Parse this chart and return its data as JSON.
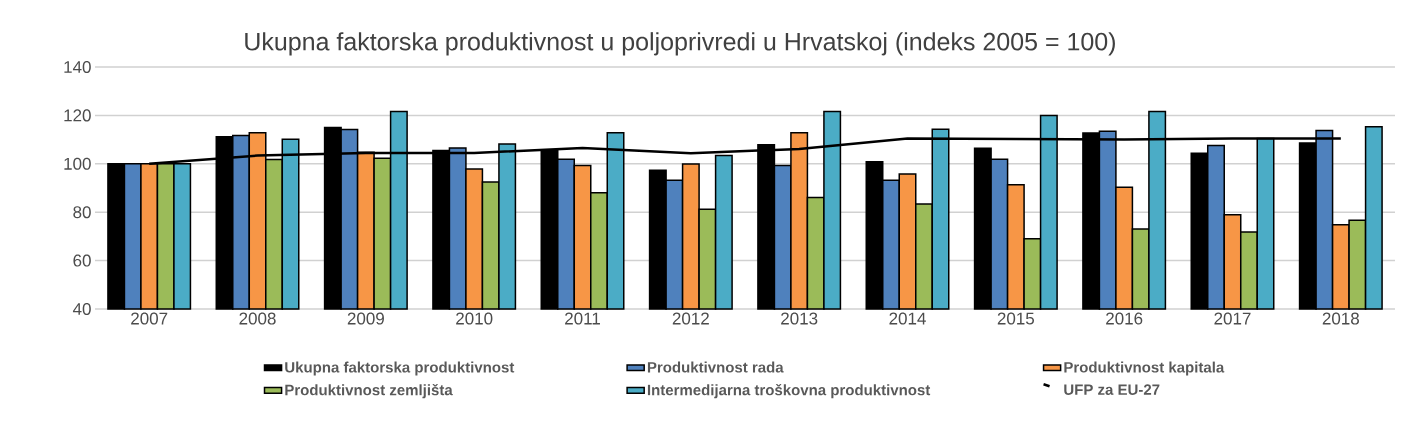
{
  "chart_data": {
    "type": "bar",
    "title": "Ukupna faktorska produktivnost u poljoprivredi u Hrvatskoj (indeks 2005 = 100)",
    "categories": [
      "2007",
      "2008",
      "2009",
      "2010",
      "2011",
      "2012",
      "2013",
      "2014",
      "2015",
      "2016",
      "2017",
      "2018"
    ],
    "series": [
      {
        "name": "Ukupna faktorska produktivnost",
        "color": "#000000",
        "values": [
          100,
          111.2,
          115,
          105.5,
          105.7,
          97.3,
          107.9,
          100.8,
          106.4,
          112.7,
          104.4,
          108.6
        ]
      },
      {
        "name": "Produktivnost rada",
        "color": "#4f81bd",
        "values": [
          100,
          111.7,
          114.2,
          106.5,
          101.9,
          93.2,
          99.3,
          93.2,
          101.9,
          113.4,
          107.6,
          113.8
        ]
      },
      {
        "name": "Produktivnost kapitala",
        "color": "#f79646",
        "values": [
          100,
          112.8,
          104.8,
          97.8,
          99.3,
          99.9,
          112.8,
          95.8,
          91.3,
          90.3,
          78.9,
          74.8
        ]
      },
      {
        "name": "Produktivnost zemljišta",
        "color": "#9bbb59",
        "values": [
          100,
          101.8,
          102.3,
          92.5,
          88,
          81.2,
          86.1,
          83.4,
          69,
          73.1,
          71.8,
          76.7
        ]
      },
      {
        "name": "Intermedijarna troškovna produktivnost",
        "color": "#4bacc6",
        "values": [
          100,
          110.1,
          121.6,
          108.2,
          112.8,
          103.4,
          121.6,
          114.3,
          120,
          121.6,
          110.5,
          115.3
        ]
      },
      {
        "name": "UFP za EU-27",
        "color": "#000000",
        "type": "line",
        "values": [
          100,
          103.4,
          104.5,
          104.5,
          106.5,
          104.4,
          106.1,
          110.5,
          110.2,
          110,
          110.5,
          110.5
        ]
      }
    ],
    "ylim": [
      40,
      140
    ],
    "yticks": [
      40,
      60,
      80,
      100,
      120,
      140
    ],
    "grid": "y",
    "legend": "bottom"
  }
}
